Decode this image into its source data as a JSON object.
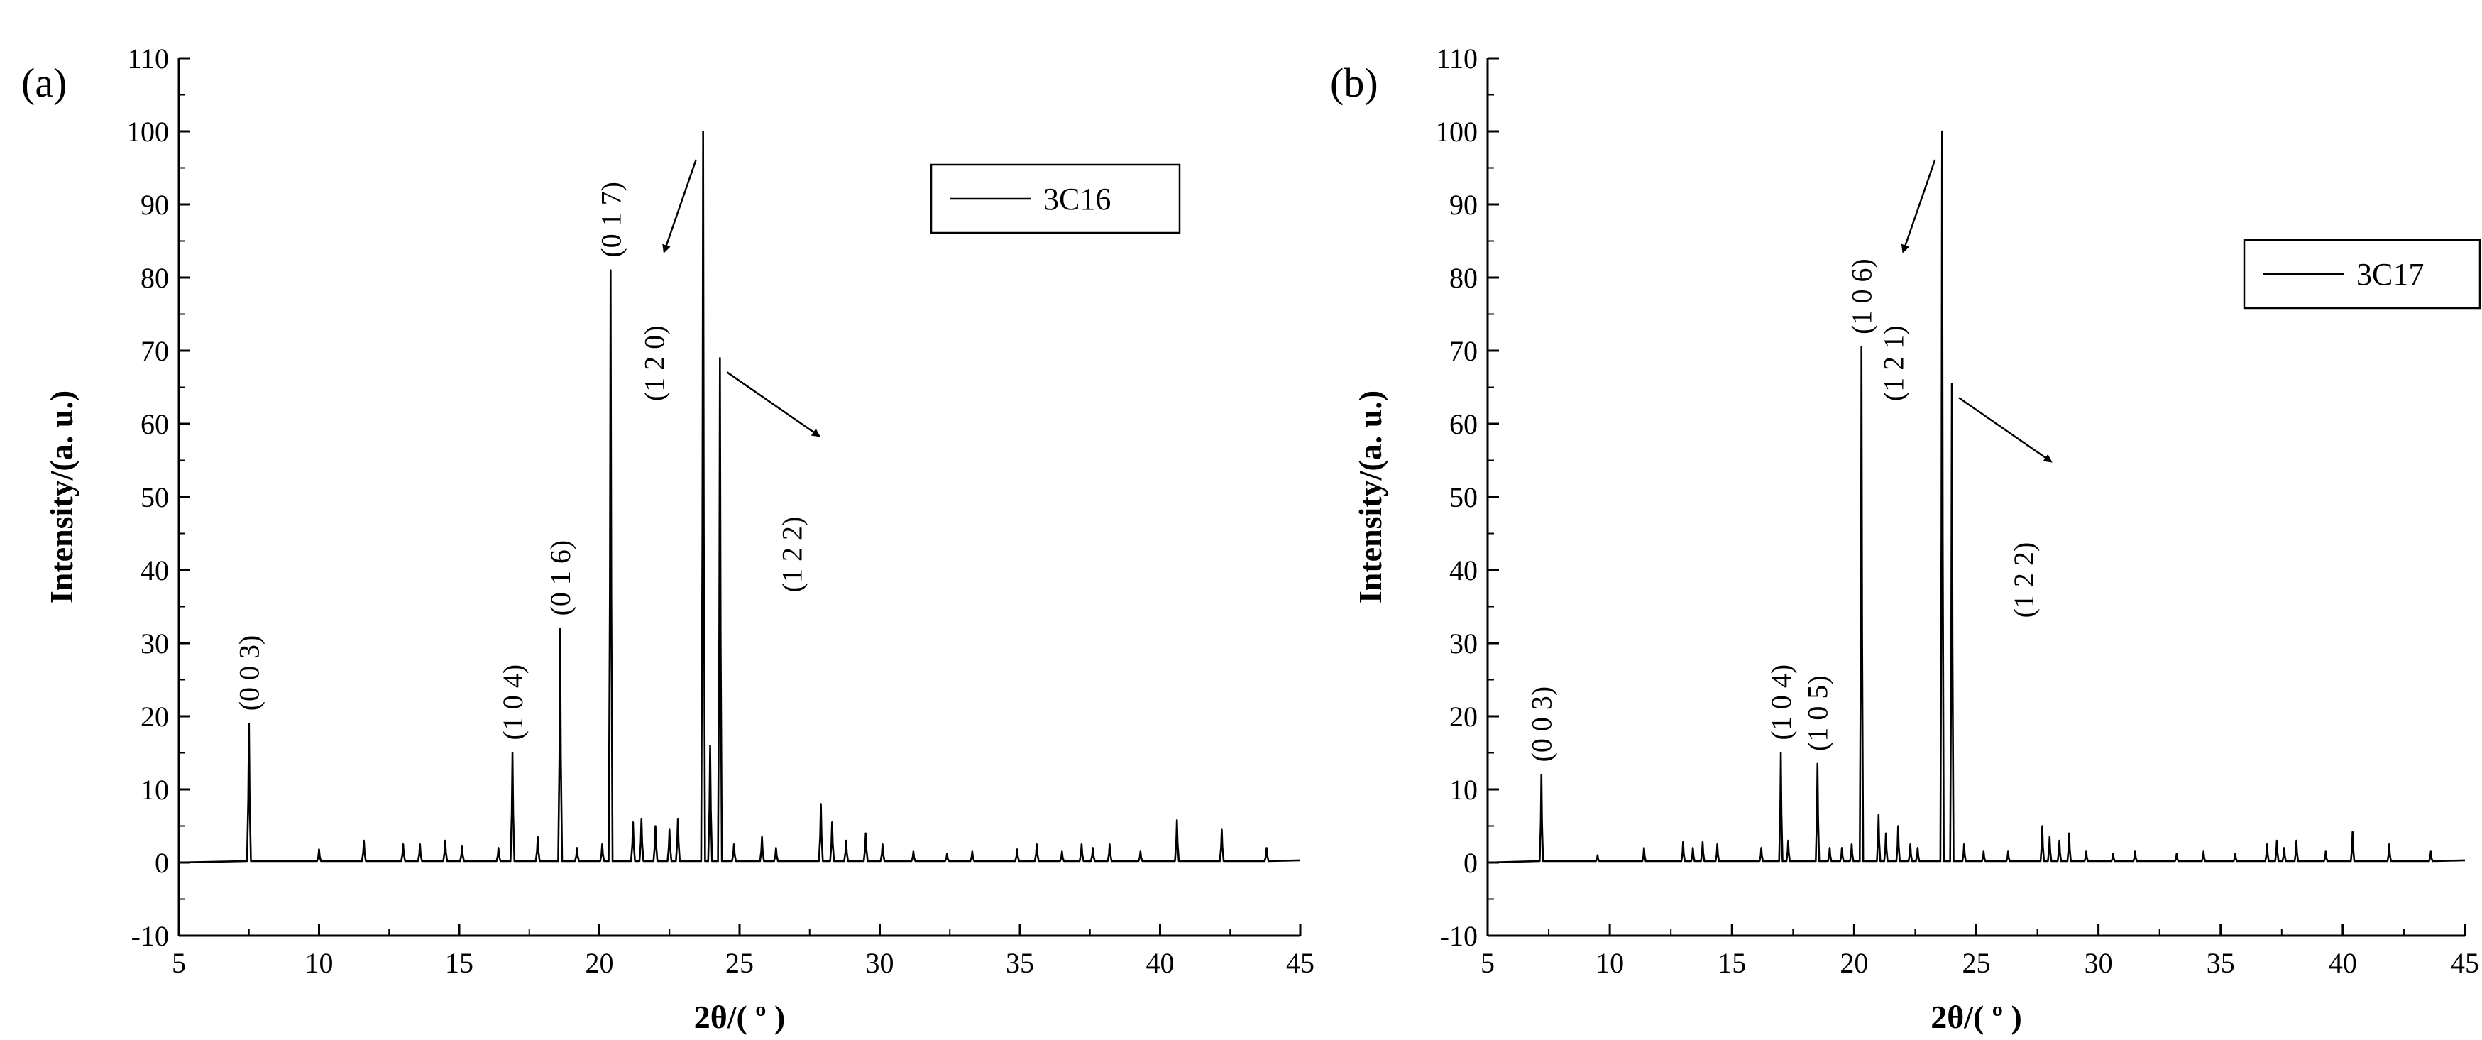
{
  "chart_data": [
    {
      "type": "line",
      "panel_label": "(a)",
      "xlabel": "2θ/( º )",
      "ylabel": "Intensity/(a. u.)",
      "xlim": [
        5,
        45
      ],
      "ylim": [
        -10,
        110
      ],
      "xticks": [
        5,
        10,
        15,
        20,
        25,
        30,
        35,
        40,
        45
      ],
      "yticks": [
        -10,
        0,
        10,
        20,
        30,
        40,
        50,
        60,
        70,
        80,
        90,
        100,
        110
      ],
      "legend": {
        "placement": "top-right",
        "entries": [
          "3C16"
        ]
      },
      "series": [
        {
          "name": "3C16",
          "peaks": [
            [
              7.5,
              19
            ],
            [
              10.0,
              1.8
            ],
            [
              11.6,
              3.0
            ],
            [
              13.0,
              2.5
            ],
            [
              13.6,
              2.5
            ],
            [
              14.5,
              3.0
            ],
            [
              15.1,
              2.2
            ],
            [
              16.4,
              2.0
            ],
            [
              16.9,
              15
            ],
            [
              17.8,
              3.5
            ],
            [
              18.6,
              32
            ],
            [
              19.2,
              2.0
            ],
            [
              20.1,
              2.5
            ],
            [
              20.4,
              81
            ],
            [
              21.2,
              5.5
            ],
            [
              21.5,
              6.0
            ],
            [
              22.0,
              5.0
            ],
            [
              22.5,
              4.5
            ],
            [
              22.8,
              6.0
            ],
            [
              23.7,
              100
            ],
            [
              23.95,
              16
            ],
            [
              24.3,
              69
            ],
            [
              24.8,
              2.5
            ],
            [
              25.8,
              3.5
            ],
            [
              26.3,
              2.0
            ],
            [
              27.9,
              8
            ],
            [
              28.3,
              5.5
            ],
            [
              28.8,
              3.0
            ],
            [
              29.5,
              4.0
            ],
            [
              30.1,
              2.5
            ],
            [
              31.2,
              1.5
            ],
            [
              32.4,
              1.2
            ],
            [
              33.3,
              1.5
            ],
            [
              34.9,
              1.8
            ],
            [
              35.6,
              2.5
            ],
            [
              36.5,
              1.5
            ],
            [
              37.2,
              2.5
            ],
            [
              37.6,
              2.0
            ],
            [
              38.2,
              2.5
            ],
            [
              39.3,
              1.5
            ],
            [
              40.6,
              5.8
            ],
            [
              42.2,
              4.5
            ],
            [
              43.8,
              2.0
            ]
          ]
        }
      ],
      "annotations": [
        {
          "text": "(0 0 3)",
          "x": 7.5,
          "y": 19
        },
        {
          "text": "(1 0 4)",
          "x": 16.9,
          "y": 15
        },
        {
          "text": "(0 1 6)",
          "x": 18.6,
          "y": 32
        },
        {
          "text": "(0 1 7)",
          "overbar": "7",
          "x": 20.4,
          "y": 81
        },
        {
          "text": "(1 2 0)",
          "overbar": "2",
          "x": 23.7,
          "y": 100,
          "arrow": true
        },
        {
          "text": "(1 2 2)",
          "overbar": "2 2",
          "x": 24.3,
          "y": 69,
          "arrow": true
        }
      ]
    },
    {
      "type": "line",
      "panel_label": "(b)",
      "xlabel": "2θ/( º )",
      "ylabel": "Intensity/(a. u.)",
      "xlim": [
        5,
        45
      ],
      "ylim": [
        -10,
        110
      ],
      "xticks": [
        5,
        10,
        15,
        20,
        25,
        30,
        35,
        40,
        45
      ],
      "yticks": [
        -10,
        0,
        10,
        20,
        30,
        40,
        50,
        60,
        70,
        80,
        90,
        100,
        110
      ],
      "legend": {
        "placement": "top-right",
        "entries": [
          "3C17"
        ]
      },
      "series": [
        {
          "name": "3C17",
          "peaks": [
            [
              7.2,
              12
            ],
            [
              9.5,
              1.0
            ],
            [
              11.4,
              2.0
            ],
            [
              13.0,
              2.8
            ],
            [
              13.4,
              2.0
            ],
            [
              13.8,
              2.8
            ],
            [
              14.4,
              2.5
            ],
            [
              16.2,
              2.0
            ],
            [
              17.0,
              15
            ],
            [
              17.3,
              3.0
            ],
            [
              18.5,
              13.5
            ],
            [
              19.0,
              2.0
            ],
            [
              19.5,
              2.0
            ],
            [
              19.9,
              2.5
            ],
            [
              20.3,
              70.5
            ],
            [
              21.0,
              6.5
            ],
            [
              21.3,
              4.0
            ],
            [
              21.8,
              5.0
            ],
            [
              22.3,
              2.5
            ],
            [
              22.6,
              2.0
            ],
            [
              23.6,
              100
            ],
            [
              24.0,
              65.5
            ],
            [
              24.5,
              2.5
            ],
            [
              25.3,
              1.5
            ],
            [
              26.3,
              1.5
            ],
            [
              27.7,
              5.0
            ],
            [
              28.0,
              3.5
            ],
            [
              28.4,
              3.0
            ],
            [
              28.8,
              4.0
            ],
            [
              29.5,
              1.5
            ],
            [
              30.6,
              1.2
            ],
            [
              31.5,
              1.5
            ],
            [
              33.2,
              1.2
            ],
            [
              34.3,
              1.5
            ],
            [
              35.6,
              1.2
            ],
            [
              36.9,
              2.5
            ],
            [
              37.3,
              3.0
            ],
            [
              37.6,
              2.0
            ],
            [
              38.1,
              3.0
            ],
            [
              39.3,
              1.5
            ],
            [
              40.4,
              4.2
            ],
            [
              41.9,
              2.5
            ],
            [
              43.6,
              1.5
            ]
          ]
        }
      ],
      "annotations": [
        {
          "text": "(0 0 3)",
          "x": 7.2,
          "y": 12
        },
        {
          "text": "(1 0 4)",
          "x": 17.0,
          "y": 15
        },
        {
          "text": "(1 0 5)",
          "x": 18.5,
          "y": 13.5
        },
        {
          "text": "(1 0 6)",
          "x": 20.3,
          "y": 70.5
        },
        {
          "text": "(1 2 1)",
          "overbar": "2",
          "x": 23.6,
          "y": 100,
          "arrow": true
        },
        {
          "text": "(1 2 2)",
          "overbar": "2 2",
          "x": 24.0,
          "y": 65.5,
          "arrow": true
        }
      ]
    }
  ]
}
